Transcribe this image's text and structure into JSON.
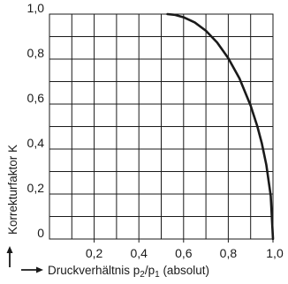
{
  "chart_data": {
    "type": "line",
    "title": "",
    "xlabel": {
      "arrow": "→",
      "text_before": "Druckverhältnis p",
      "sub1": "2",
      "slash": "/p",
      "sub2": "1",
      "text_after": " (absolut)"
    },
    "ylabel": {
      "arrow": "↑",
      "text": "Korrekturfaktor K"
    },
    "xlim": [
      0,
      1.0
    ],
    "ylim": [
      0,
      1.0
    ],
    "grid": true,
    "x_ticks": [
      {
        "value": 0.2,
        "label": "0,2"
      },
      {
        "value": 0.4,
        "label": "0,4"
      },
      {
        "value": 0.6,
        "label": "0,6"
      },
      {
        "value": 0.8,
        "label": "0,8"
      },
      {
        "value": 1.0,
        "label": "1,0"
      }
    ],
    "y_ticks": [
      {
        "value": 0,
        "label": "0"
      },
      {
        "value": 0.2,
        "label": "0,2"
      },
      {
        "value": 0.4,
        "label": "0,4"
      },
      {
        "value": 0.6,
        "label": "0,6"
      },
      {
        "value": 0.8,
        "label": "0,8"
      },
      {
        "value": 1.0,
        "label": "1,0"
      }
    ],
    "series": [
      {
        "color": "#1a1a1a",
        "x": [
          0.528,
          0.56,
          0.6,
          0.65,
          0.7,
          0.75,
          0.8,
          0.85,
          0.9,
          0.93,
          0.95,
          0.97,
          0.99,
          1.0
        ],
        "y": [
          1.0,
          0.997,
          0.986,
          0.963,
          0.926,
          0.874,
          0.804,
          0.714,
          0.593,
          0.501,
          0.426,
          0.331,
          0.192,
          0.0
        ]
      }
    ]
  }
}
